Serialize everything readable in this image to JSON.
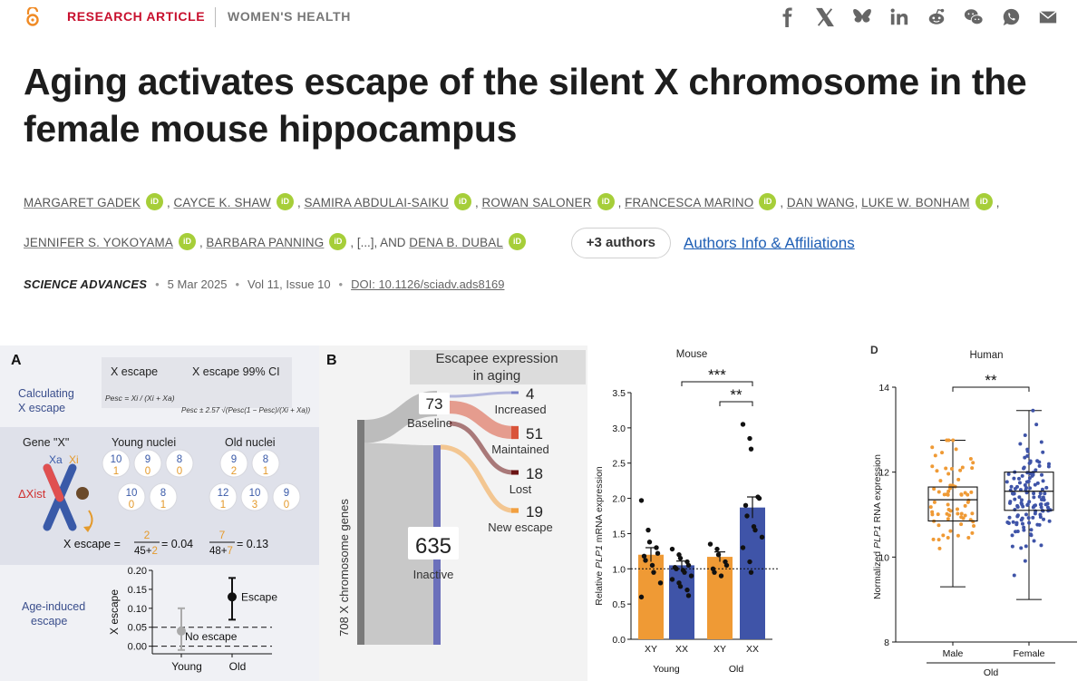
{
  "header": {
    "article_type": "RESEARCH ARTICLE",
    "section": "WOMEN'S HEALTH",
    "share_icons": [
      "facebook-icon",
      "x-icon",
      "bluesky-icon",
      "linkedin-icon",
      "reddit-icon",
      "wechat-icon",
      "whatsapp-icon",
      "email-icon"
    ]
  },
  "article": {
    "title": "Aging activates escape of the silent X chromosome in the female mouse hippocampus",
    "authors": [
      "MARGARET GADEK",
      "CAYCE K. SHAW",
      "SAMIRA ABDULAI-SAIKU",
      "ROWAN SALONER",
      "FRANCESCA MARINO",
      "DAN WANG",
      "LUKE W. BONHAM",
      "JENNIFER S. YOKOYAMA",
      "BARBARA PANNING",
      "[...]",
      "DENA B. DUBAL"
    ],
    "and_word": ", AND",
    "more_authors": "+3 authors",
    "affiliations_link": "Authors Info & Affiliations",
    "journal": "SCIENCE ADVANCES",
    "date": "5 Mar 2025",
    "volume": "Vol 11, Issue 10",
    "doi": "DOI: 10.1126/sciadv.ads8169",
    "orcid_label": "iD"
  },
  "panelA": {
    "letter": "A",
    "col1": "X escape",
    "col2": "X escape 99% CI",
    "calc_label_1": "Calculating",
    "calc_label_2": "X escape",
    "formula1": "Pesc = Xi / (Xi + Xa)",
    "formula2": "Pesc ± 2.57 √(Pesc(1 − Pesc)/(Xi + Xa))",
    "gene_label": "Gene \"X\"",
    "young_label": "Young nuclei",
    "old_label": "Old nuclei",
    "xa": "Xa",
    "xi": "Xi",
    "dxist": "ΔXist",
    "young_nuclei": [
      {
        "a": "10",
        "i": "1"
      },
      {
        "a": "9",
        "i": "0"
      },
      {
        "a": "8",
        "i": "0"
      },
      {
        "a": "10",
        "i": "0"
      },
      {
        "a": "8",
        "i": "1"
      }
    ],
    "old_nuclei": [
      {
        "a": "9",
        "i": "2"
      },
      {
        "a": "8",
        "i": "1"
      },
      {
        "a": "12",
        "i": "1"
      },
      {
        "a": "10",
        "i": "3"
      },
      {
        "a": "9",
        "i": "0"
      }
    ],
    "x_escape_eq": "X escape =",
    "young_frac_num": "2",
    "young_frac_den": "45+2",
    "young_result": "= 0.04",
    "old_frac_num": "7",
    "old_frac_den": "48+7",
    "old_result": "= 0.13",
    "age_induced_1": "Age-induced",
    "age_induced_2": "escape",
    "chart_data": {
      "type": "scatter",
      "ylabel": "X escape",
      "ylim": [
        -0.02,
        0.2
      ],
      "yticks": [
        "0.20",
        "0.15",
        "0.10",
        "0.05",
        "0.00"
      ],
      "categories": [
        "Young",
        "Old"
      ],
      "points": [
        {
          "x": "Young",
          "y": 0.04,
          "low": -0.01,
          "high": 0.1,
          "color": "#aaaaaa"
        },
        {
          "x": "Old",
          "y": 0.13,
          "low": 0.07,
          "high": 0.18,
          "color": "#111111"
        }
      ],
      "threshold_lines": [
        0.05,
        0.0
      ],
      "annotations": [
        "Escape",
        "No escape"
      ]
    }
  },
  "panelB": {
    "letter": "B",
    "title_1": "Escapee expression",
    "title_2": "in aging",
    "total_label": "708 X chromosome genes",
    "chart_data": {
      "type": "sankey",
      "total": 708,
      "groups": [
        {
          "name": "Baseline",
          "value": 73
        },
        {
          "name": "Inactive",
          "value": 635
        }
      ],
      "outcomes": [
        {
          "name": "Increased",
          "value": 4,
          "color": "#7b83c8"
        },
        {
          "name": "Maintained",
          "value": 51,
          "color": "#d9543a"
        },
        {
          "name": "Lost",
          "value": 18,
          "color": "#6b1414"
        },
        {
          "name": "New escape",
          "value": 19,
          "color": "#f2a040"
        }
      ]
    }
  },
  "panelC": {
    "chart_data": {
      "type": "bar",
      "title": "Mouse",
      "ylabel_pre": "Relative ",
      "ylabel_gene": "PLP1",
      "ylabel_post": " mRNA expression",
      "ylim": [
        0,
        3.5
      ],
      "yticks": [
        "0.0",
        "0.5",
        "1.0",
        "1.5",
        "2.0",
        "2.5",
        "3.0",
        "3.5"
      ],
      "categories": [
        "XY",
        "XX",
        "XY",
        "XX"
      ],
      "groups": [
        "Young",
        "Old"
      ],
      "values": [
        1.2,
        1.05,
        1.17,
        1.87
      ],
      "errors": [
        0.1,
        0.06,
        0.07,
        0.15
      ],
      "colors": [
        "#ef9a35",
        "#3f54a8",
        "#ef9a35",
        "#3f54a8"
      ],
      "points": [
        [
          1.97,
          1.55,
          1.38,
          1.3,
          1.22,
          1.18,
          1.12,
          1.05,
          0.95,
          0.8,
          0.6
        ],
        [
          1.28,
          1.2,
          1.15,
          1.1,
          1.05,
          1.02,
          1.0,
          0.98,
          0.95,
          0.9,
          0.85,
          0.8,
          0.75,
          0.7,
          0.62
        ],
        [
          1.35,
          1.28,
          1.2,
          1.1,
          1.05,
          1.0,
          0.95,
          0.9
        ],
        [
          3.05,
          2.85,
          2.7,
          2.02,
          2.0,
          1.9,
          1.75,
          1.6,
          1.55,
          1.45,
          1.3,
          1.1,
          0.95
        ]
      ],
      "reference_line": 1.0,
      "significance": [
        {
          "label": "***",
          "from": 1,
          "to": 3
        },
        {
          "label": "**",
          "from": 2,
          "to": 3
        }
      ]
    }
  },
  "panelD": {
    "letter": "D",
    "chart_data": {
      "type": "box",
      "title": "Human",
      "ylabel_pre": "Normalized ",
      "ylabel_gene": "PLP1",
      "ylabel_post": " RNA expression",
      "ylim": [
        8,
        14
      ],
      "yticks": [
        "8",
        "10",
        "12",
        "14"
      ],
      "categories": [
        "Male",
        "Female"
      ],
      "group": "Old",
      "boxes": [
        {
          "name": "Male",
          "min": 9.3,
          "q1": 10.85,
          "median": 11.35,
          "q3": 11.65,
          "max": 12.75,
          "color": "#ef9a35"
        },
        {
          "name": "Female",
          "min": 9.0,
          "q1": 11.1,
          "median": 11.55,
          "q3": 12.0,
          "max": 13.45,
          "color": "#3f54a8"
        }
      ],
      "significance": [
        {
          "label": "**",
          "from": 0,
          "to": 1
        }
      ]
    }
  }
}
